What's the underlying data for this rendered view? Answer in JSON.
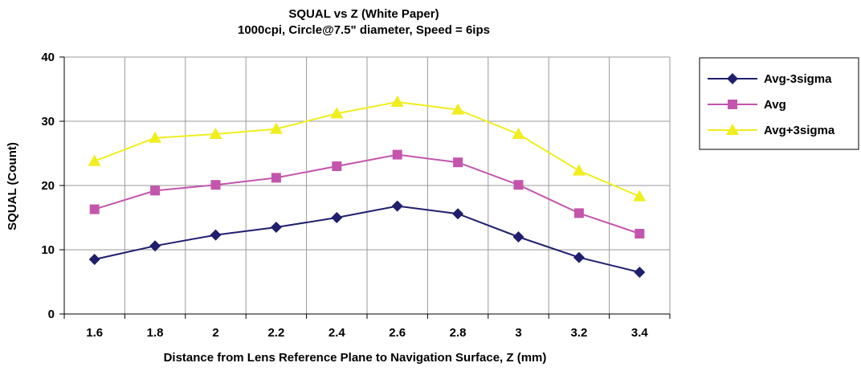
{
  "chart_data": {
    "type": "line",
    "title": "SQUAL vs Z (White Paper)",
    "subtitle": "1000cpi, Circle@7.5\" diameter, Speed = 6ips",
    "xlabel": "Distance from Lens Reference Plane to Navigation Surface, Z (mm)",
    "ylabel": "SQUAL (Count)",
    "categories": [
      "1.6",
      "1.8",
      "2",
      "2.2",
      "2.4",
      "2.6",
      "2.8",
      "3",
      "3.2",
      "3.4"
    ],
    "ylim": [
      0,
      40
    ],
    "yticks": [
      "0",
      "10",
      "20",
      "30",
      "40"
    ],
    "grid": true,
    "legend_position": "right",
    "series": [
      {
        "name": "Avg-3sigma",
        "marker": "diamond",
        "color": "#1f1f6e",
        "values": [
          8.5,
          10.6,
          12.3,
          13.5,
          15.0,
          16.8,
          15.6,
          12.0,
          8.8,
          6.5
        ]
      },
      {
        "name": "Avg",
        "marker": "square",
        "color": "#c455ad",
        "values": [
          16.3,
          19.2,
          20.1,
          21.2,
          23.0,
          24.8,
          23.6,
          20.1,
          15.7,
          12.5
        ]
      },
      {
        "name": "Avg+3sigma",
        "marker": "triangle",
        "color": "#f0ee1e",
        "values": [
          23.8,
          27.4,
          28.0,
          28.8,
          31.2,
          33.0,
          31.8,
          28.0,
          22.3,
          18.3
        ]
      }
    ]
  }
}
